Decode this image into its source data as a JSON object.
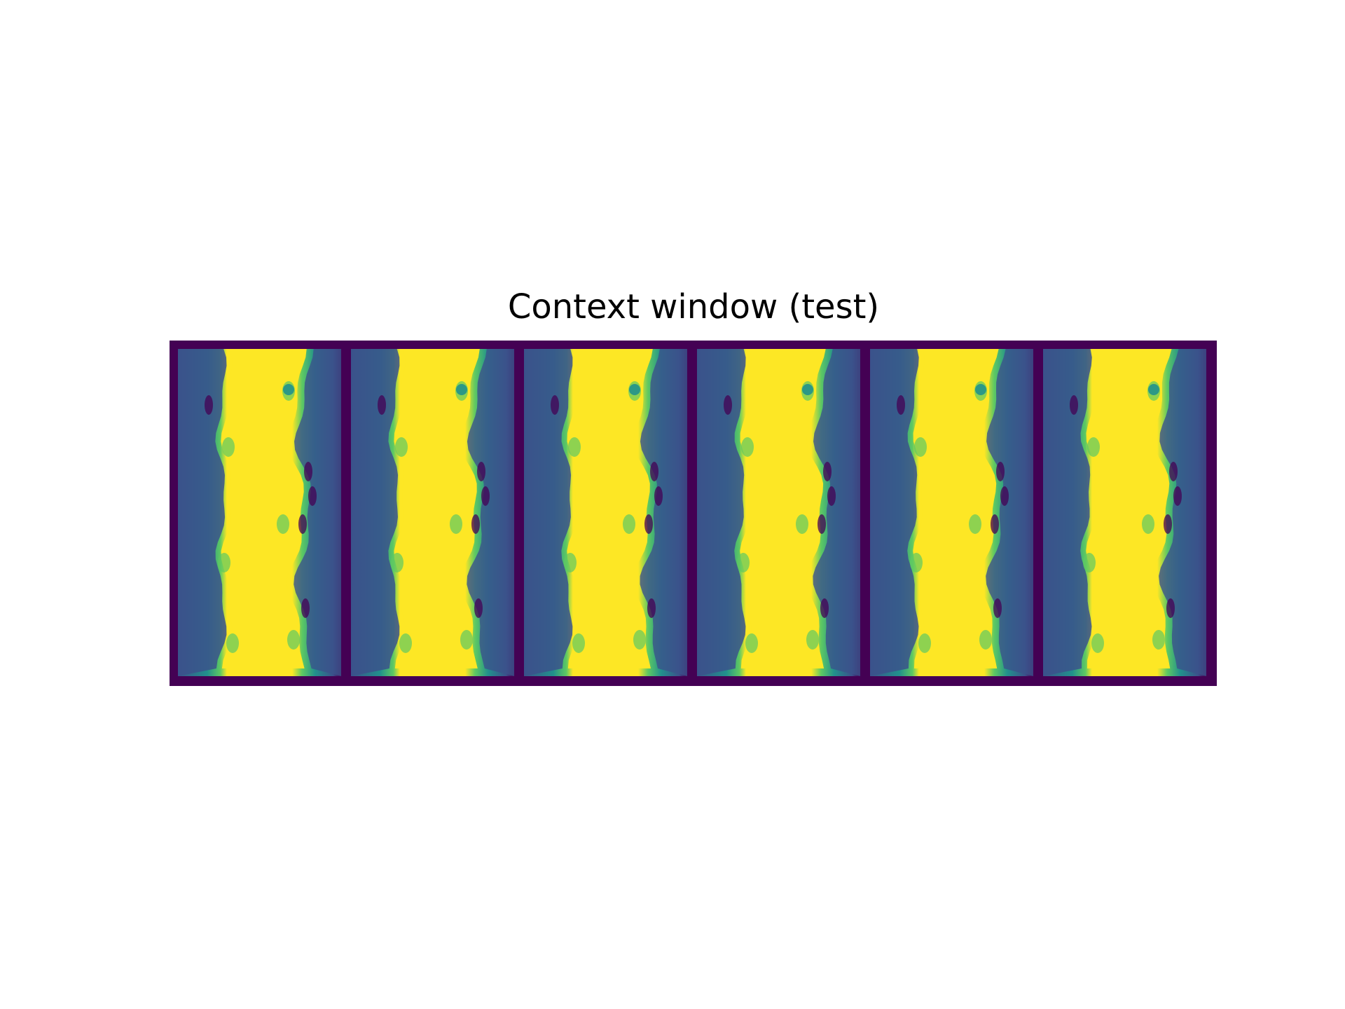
{
  "chart_data": {
    "type": "heatmap",
    "title": "Context window (test)",
    "colormap": "viridis",
    "border_color": "#440154",
    "frame_count": 6,
    "frames": [
      {
        "index": 1
      },
      {
        "index": 2
      },
      {
        "index": 3
      },
      {
        "index": 4
      },
      {
        "index": 5
      },
      {
        "index": 6
      }
    ],
    "colors": {
      "dark": "#440154",
      "blue": "#3b528b",
      "teal": "#21918c",
      "green": "#5ec962",
      "yellow": "#fde725"
    }
  }
}
